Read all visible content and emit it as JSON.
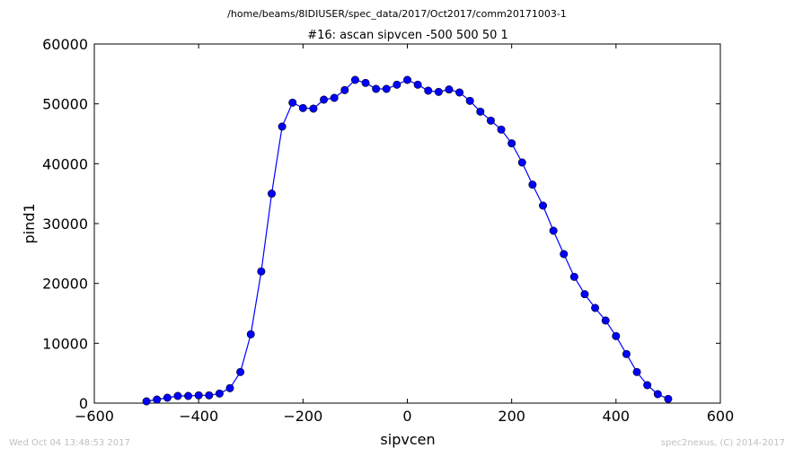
{
  "chart_data": {
    "type": "line",
    "suptitle": "/home/beams/8IDIUSER/spec_data/2017/Oct2017/comm20171003-1",
    "title": "#16: ascan  sipvcen -500 500  50 1",
    "xlabel": "sipvcen",
    "ylabel": "pind1",
    "xlim": [
      -600,
      600
    ],
    "ylim": [
      0,
      60000
    ],
    "xticks": [
      -600,
      -400,
      -200,
      0,
      200,
      400,
      600
    ],
    "xtick_labels": [
      "−600",
      "−400",
      "−200",
      "0",
      "200",
      "400",
      "600"
    ],
    "yticks": [
      0,
      10000,
      20000,
      30000,
      40000,
      50000,
      60000
    ],
    "ytick_labels": [
      "0",
      "10000",
      "20000",
      "30000",
      "40000",
      "50000",
      "60000"
    ],
    "grid": false,
    "line_color": "#0000ff",
    "marker": "circle",
    "x": [
      -500,
      -480,
      -460,
      -440,
      -420,
      -400,
      -380,
      -360,
      -340,
      -320,
      -300,
      -280,
      -260,
      -240,
      -220,
      -200,
      -180,
      -160,
      -140,
      -120,
      -100,
      -80,
      -60,
      -40,
      -20,
      0,
      20,
      40,
      60,
      80,
      100,
      120,
      140,
      160,
      180,
      200,
      220,
      240,
      260,
      280,
      300,
      320,
      340,
      360,
      380,
      400,
      420,
      440,
      460,
      480,
      500
    ],
    "y": [
      300,
      600,
      900,
      1200,
      1200,
      1300,
      1300,
      1600,
      2500,
      5200,
      11500,
      22000,
      35000,
      46200,
      50200,
      49300,
      49200,
      50700,
      51000,
      52300,
      54000,
      53500,
      52500,
      52500,
      53200,
      54000,
      53200,
      52200,
      52000,
      52400,
      51900,
      50500,
      48700,
      47200,
      45700,
      43400,
      40200,
      36500,
      33000,
      28800,
      24900,
      21100,
      18200,
      15900,
      13800,
      11200,
      8200,
      5200,
      3000,
      1500,
      700
    ]
  },
  "footer": {
    "timestamp": "Wed Oct 04 13:48:53 2017",
    "credit": "spec2nexus, (C) 2014-2017"
  }
}
